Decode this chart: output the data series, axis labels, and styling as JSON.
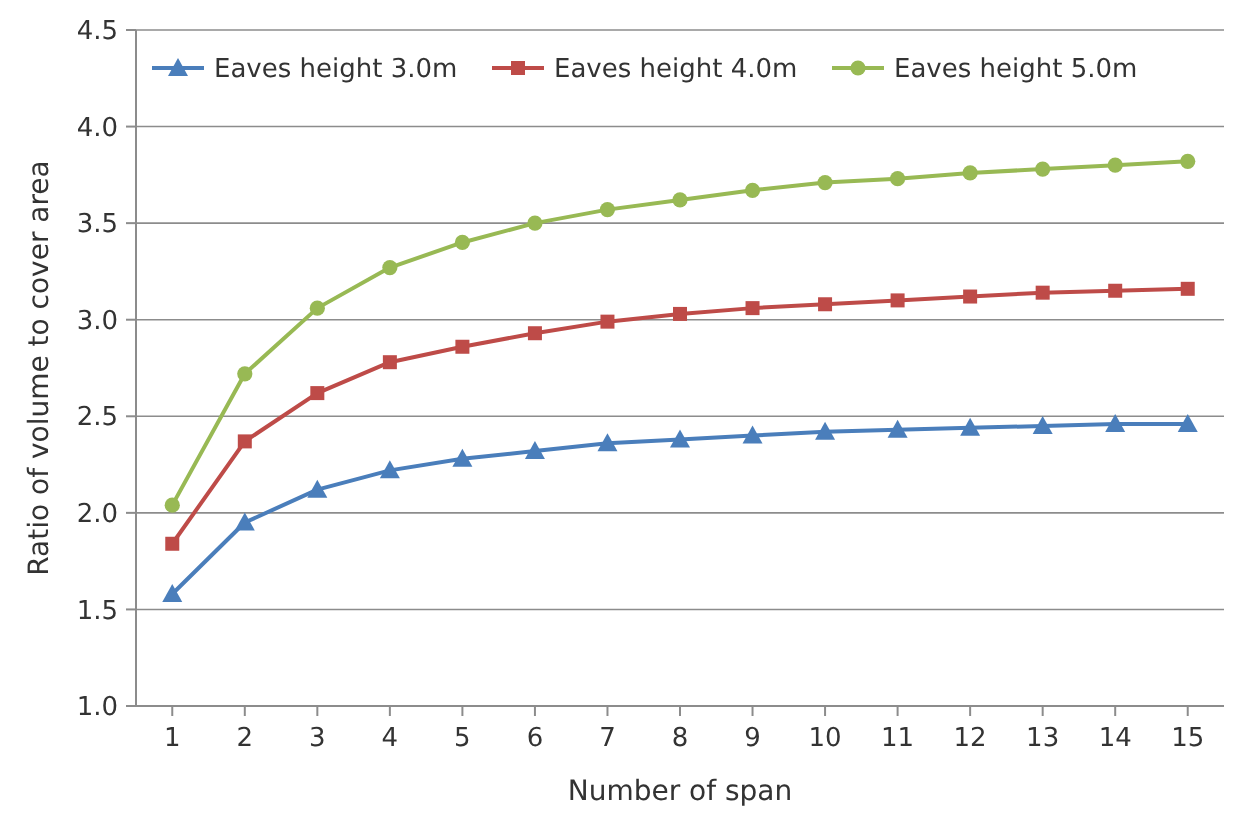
{
  "chart_data": {
    "type": "line",
    "xlabel": "Number of span",
    "ylabel": "Ratio of volume to cover area",
    "x": [
      1,
      2,
      3,
      4,
      5,
      6,
      7,
      8,
      9,
      10,
      11,
      12,
      13,
      14,
      15
    ],
    "xlim": [
      0.5,
      15.5
    ],
    "xticks": [
      1,
      2,
      3,
      4,
      5,
      6,
      7,
      8,
      9,
      10,
      11,
      12,
      13,
      14,
      15
    ],
    "ylim": [
      1.0,
      4.5
    ],
    "yticks": [
      {
        "value": 1,
        "label": "1.0"
      },
      {
        "value": 1.5,
        "label": "1.5"
      },
      {
        "value": 2,
        "label": "2.0"
      },
      {
        "value": 2.5,
        "label": "2.5"
      },
      {
        "value": 3,
        "label": "3.0"
      },
      {
        "value": 3.5,
        "label": "3.5"
      },
      {
        "value": 4,
        "label": "4.0"
      },
      {
        "value": 4.5,
        "label": "4.5"
      }
    ],
    "grid": "y",
    "legend": "top left",
    "series": [
      {
        "name": "Eaves height 3.0m",
        "color": "#4a7ebb",
        "marker": "triangle",
        "values": [
          1.58,
          1.95,
          2.12,
          2.22,
          2.28,
          2.32,
          2.36,
          2.38,
          2.4,
          2.42,
          2.43,
          2.44,
          2.45,
          2.46,
          2.46
        ]
      },
      {
        "name": "Eaves height 4.0m",
        "color": "#be4b48",
        "marker": "square",
        "values": [
          1.84,
          2.37,
          2.62,
          2.78,
          2.86,
          2.93,
          2.99,
          3.03,
          3.06,
          3.08,
          3.1,
          3.12,
          3.14,
          3.15,
          3.16
        ]
      },
      {
        "name": "Eaves height 5.0m",
        "color": "#98b954",
        "marker": "circle",
        "values": [
          2.04,
          2.72,
          3.06,
          3.27,
          3.4,
          3.5,
          3.57,
          3.62,
          3.67,
          3.71,
          3.73,
          3.76,
          3.78,
          3.8,
          3.82
        ]
      }
    ]
  }
}
